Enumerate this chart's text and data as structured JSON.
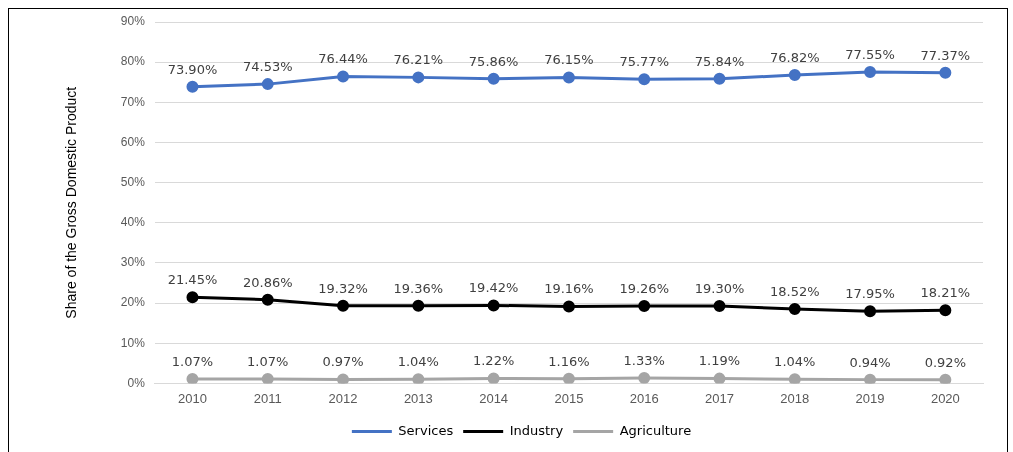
{
  "chart_data": {
    "type": "line",
    "ylabel": "Share of the Gross Domestic Product",
    "categories": [
      "2010",
      "2011",
      "2012",
      "2013",
      "2014",
      "2015",
      "2016",
      "2017",
      "2018",
      "2019",
      "2020"
    ],
    "series": [
      {
        "name": "Services",
        "color": "#4472c4",
        "values": [
          73.9,
          74.53,
          76.44,
          76.21,
          75.86,
          76.15,
          75.77,
          75.84,
          76.82,
          77.55,
          77.37
        ],
        "value_labels": [
          "73.90%",
          "74.53%",
          "76.44%",
          "76.21%",
          "75.86%",
          "76.15%",
          "75.77%",
          "75.84%",
          "76.82%",
          "77.55%",
          "77.37%"
        ]
      },
      {
        "name": "Industry",
        "color": "#000000",
        "values": [
          21.45,
          20.86,
          19.32,
          19.36,
          19.42,
          19.16,
          19.26,
          19.3,
          18.52,
          17.95,
          18.21
        ],
        "value_labels": [
          "21.45%",
          "20.86%",
          "19.32%",
          "19.36%",
          "19.42%",
          "19.16%",
          "19.26%",
          "19.30%",
          "18.52%",
          "17.95%",
          "18.21%"
        ]
      },
      {
        "name": "Agriculture",
        "color": "#a5a5a5",
        "values": [
          1.07,
          1.07,
          0.97,
          1.04,
          1.22,
          1.16,
          1.33,
          1.19,
          1.04,
          0.94,
          0.92
        ],
        "value_labels": [
          "1.07%",
          "1.07%",
          "0.97%",
          "1.04%",
          "1.22%",
          "1.16%",
          "1.33%",
          "1.19%",
          "1.04%",
          "0.94%",
          "0.92%"
        ]
      }
    ],
    "ylim": [
      0,
      90
    ],
    "yticks": [
      {
        "value": 0,
        "label": "0%"
      },
      {
        "value": 10,
        "label": "10%"
      },
      {
        "value": 20,
        "label": "20%"
      },
      {
        "value": 30,
        "label": "30%"
      },
      {
        "value": 40,
        "label": "40%"
      },
      {
        "value": 50,
        "label": "50%"
      },
      {
        "value": 60,
        "label": "60%"
      },
      {
        "value": 70,
        "label": "70%"
      },
      {
        "value": 80,
        "label": "80%"
      },
      {
        "value": 90,
        "label": "90%"
      }
    ],
    "grid": "y",
    "legend": "bottom",
    "marker": "circle",
    "line_style": "solid"
  }
}
